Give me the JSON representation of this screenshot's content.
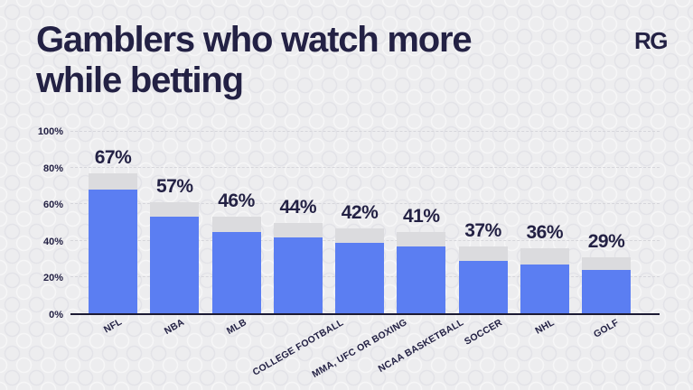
{
  "header": {
    "title_line1": "Gamblers who watch more",
    "title_line2": "while betting",
    "logo_text": "RG"
  },
  "chart_data": {
    "type": "bar",
    "title": "Gamblers who watch more while betting",
    "categories": [
      "NFL",
      "NBA",
      "MLB",
      "COLLEGE FOOTBALL",
      "MMA, UFC OR BOXING",
      "NCAA BASKETBALL",
      "SOCCER",
      "NHL",
      "GOLF"
    ],
    "values": [
      67,
      57,
      46,
      44,
      42,
      41,
      37,
      36,
      29
    ],
    "value_labels": [
      "67%",
      "57%",
      "46%",
      "44%",
      "42%",
      "41%",
      "37%",
      "36%",
      "29%"
    ],
    "y_ticks": [
      "100%",
      "80%",
      "60%",
      "40%",
      "20%",
      "0%"
    ],
    "y_tick_values": [
      100,
      80,
      60,
      40,
      20,
      0
    ],
    "ylim": [
      0,
      100
    ],
    "grid": "horizontal-dashed",
    "legend": "none",
    "x_label_rotation_deg": -30,
    "visual_blue_top_pct": [
      68,
      53,
      45,
      42,
      39,
      37,
      29,
      27,
      24
    ],
    "visual_cap_top_pct": [
      77,
      61,
      53,
      50,
      47,
      45,
      37,
      36,
      31
    ]
  },
  "colors": {
    "background": "#ededef",
    "text": "#232144",
    "bar_blue": "#5b7ef2",
    "bar_cap": "#dbdbde",
    "gridline": "#d6d6db",
    "axis": "#1c1a33"
  }
}
